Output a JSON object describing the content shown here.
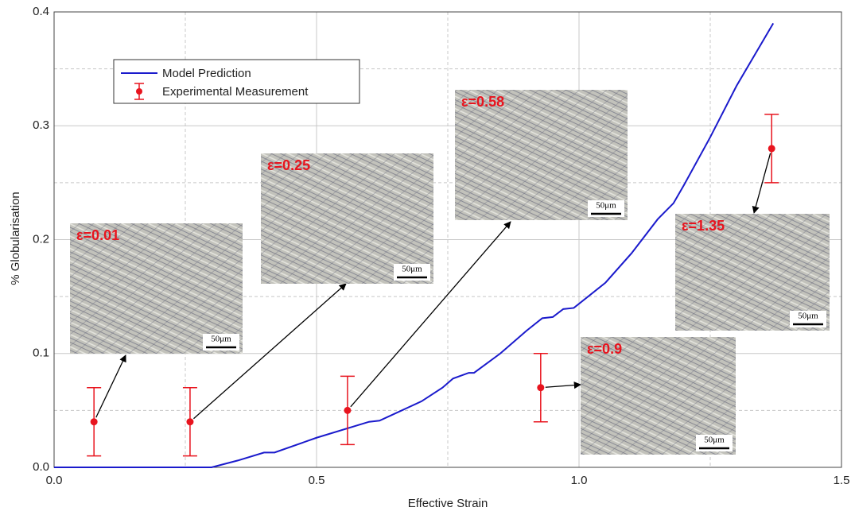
{
  "chart_data": {
    "type": "line",
    "xlabel": "Effective Strain",
    "ylabel": "% Globularisation",
    "xlim": [
      0,
      1.5
    ],
    "ylim": [
      0,
      0.4
    ],
    "xticks": [
      {
        "value": 0,
        "label": "0.0"
      },
      0.5,
      {
        "value": 1,
        "label": "1.0"
      },
      1.5
    ],
    "yticks": [
      {
        "value": 0,
        "label": "0.0"
      },
      0.1,
      0.2,
      0.3,
      0.4
    ],
    "xminor": [
      0.25,
      0.75,
      1.25
    ],
    "yminor": [
      0.05,
      0.15,
      0.25,
      0.35
    ],
    "grid": true,
    "legend": "upper left",
    "series": [
      {
        "name": "Model Prediction",
        "color": "#1a1acc",
        "x": [
          0,
          0.3,
          0.35,
          0.4,
          0.42,
          0.5,
          0.6,
          0.62,
          0.7,
          0.74,
          0.76,
          0.79,
          0.8,
          0.85,
          0.9,
          0.93,
          0.95,
          0.97,
          0.99,
          1.05,
          1.1,
          1.15,
          1.18,
          1.2,
          1.25,
          1.3,
          1.37
        ],
        "values": [
          0,
          0,
          0.006,
          0.013,
          0.013,
          0.026,
          0.04,
          0.041,
          0.058,
          0.07,
          0.078,
          0.083,
          0.083,
          0.1,
          0.12,
          0.131,
          0.132,
          0.139,
          0.14,
          0.162,
          0.188,
          0.218,
          0.232,
          0.248,
          0.29,
          0.335,
          0.39
        ]
      },
      {
        "name": "Experimental Measurement",
        "color": "#e8141e",
        "type": "errorbar",
        "x": [
          0.076,
          0.259,
          0.559,
          0.927,
          1.367
        ],
        "values": [
          0.04,
          0.04,
          0.05,
          0.07,
          0.28
        ],
        "errors": [
          0.03,
          0.03,
          0.03,
          0.03,
          0.03
        ]
      }
    ],
    "annotations": [
      {
        "text": "ε=0.01",
        "scale_bar": "50μm"
      },
      {
        "text": "ε=0.25",
        "scale_bar": "50μm"
      },
      {
        "text": "ε=0.58",
        "scale_bar": "50μm"
      },
      {
        "text": "ε=0.9",
        "scale_bar": "50μm"
      },
      {
        "text": "ε=1.35",
        "scale_bar": "50μm"
      }
    ]
  }
}
